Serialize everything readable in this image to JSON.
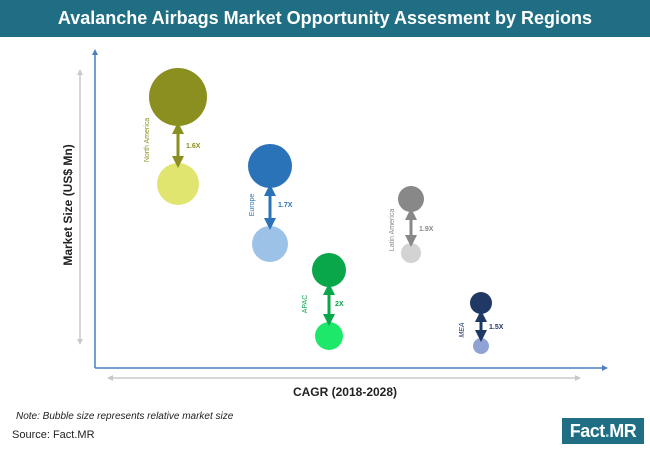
{
  "title": "Avalanche Airbags Market Opportunity Assesment by Regions",
  "note": "Note: Bubble size represents relative market size",
  "source": "Source: Fact.MR",
  "logo": {
    "part1": "Fact",
    "dot": ".",
    "part2": "MR"
  },
  "chart_data": {
    "type": "scatter",
    "subtype": "bubble",
    "xlabel": "CAGR (2018-2028)",
    "ylabel": "Market Size (US$ Mn)",
    "axes_ticks": false,
    "series": [
      {
        "region": "North America",
        "growth": "1.6X",
        "color_current": "#8a8f1f",
        "color_future": "#dfe56e"
      },
      {
        "region": "Europe",
        "growth": "1.7X",
        "color_current": "#2a73b8",
        "color_future": "#9dc2e8"
      },
      {
        "region": "APAC",
        "growth": "2X",
        "color_current": "#0aa64a",
        "color_future": "#1ee86a"
      },
      {
        "region": "Latin America",
        "growth": "1.9X",
        "color_current": "#888888",
        "color_future": "#d3d3d3"
      },
      {
        "region": "MEA",
        "growth": "1.5X",
        "color_current": "#1f3864",
        "color_future": "#8fa4d4"
      }
    ]
  },
  "colors": {
    "axis": "#4a7fc1",
    "subaxis": "#c8c8c8",
    "title_bg": "#1f6e83",
    "arrow_na": "#8a8f1f",
    "arrow_eu": "#2a73b8",
    "arrow_apac": "#0aa64a",
    "arrow_la": "#888888",
    "arrow_mea": "#1f3864"
  }
}
